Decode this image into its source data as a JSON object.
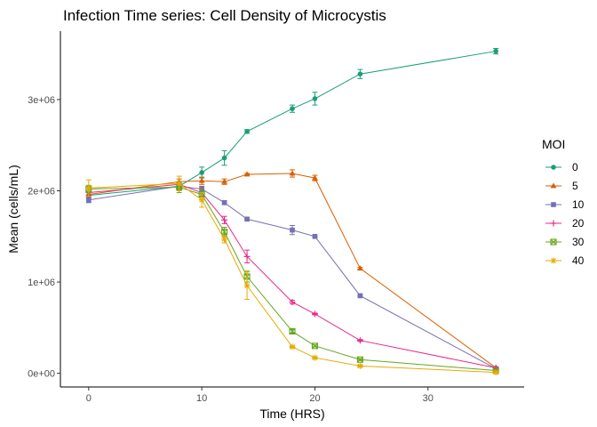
{
  "chart_data": {
    "type": "line",
    "title": "Infection Time series: Cell Density of Microcystis",
    "xlabel": "Time (HRS)",
    "ylabel": "Mean (cells/mL)",
    "xlim": [
      -2.5,
      38.5
    ],
    "ylim": [
      -150000.0,
      3750000.0
    ],
    "x_ticks": [
      0,
      10,
      20,
      30
    ],
    "x_tick_labels": [
      "0",
      "10",
      "20",
      "30"
    ],
    "y_ticks": [
      0,
      1000000,
      2000000,
      3000000
    ],
    "y_tick_labels": [
      "0e+00",
      "1e+06",
      "2e+06",
      "3e+06"
    ],
    "grid": false,
    "legend": {
      "title": "MOI",
      "position": "right"
    },
    "series": [
      {
        "name": "0",
        "color": "#1b9e77",
        "marker": "circle",
        "x": [
          0,
          8,
          10,
          12,
          14,
          18,
          20,
          24,
          36
        ],
        "y": [
          1950000,
          2050000,
          2200000,
          2360000,
          2650000,
          2900000,
          3010000,
          3280000,
          3530000
        ],
        "err": [
          40000,
          40000,
          60000,
          80000,
          20000,
          40000,
          70000,
          50000,
          30000
        ]
      },
      {
        "name": "5",
        "color": "#d95f02",
        "marker": "triangle",
        "x": [
          0,
          8,
          10,
          12,
          14,
          18,
          20,
          24,
          36
        ],
        "y": [
          1960000,
          2100000,
          2110000,
          2100000,
          2180000,
          2190000,
          2140000,
          1150000,
          60000
        ],
        "err": [
          30000,
          30000,
          40000,
          30000,
          10000,
          40000,
          30000,
          10000,
          10000
        ]
      },
      {
        "name": "10",
        "color": "#7570b3",
        "marker": "square",
        "x": [
          0,
          8,
          10,
          12,
          14,
          18,
          20,
          24,
          36
        ],
        "y": [
          1900000,
          2050000,
          2020000,
          1870000,
          1690000,
          1570000,
          1500000,
          850000,
          50000
        ],
        "err": [
          30000,
          30000,
          30000,
          20000,
          10000,
          50000,
          10000,
          10000,
          10000
        ]
      },
      {
        "name": "20",
        "color": "#e7298a",
        "marker": "plus",
        "x": [
          0,
          8,
          10,
          12,
          14,
          18,
          20,
          24,
          36
        ],
        "y": [
          1980000,
          2070000,
          1980000,
          1680000,
          1280000,
          780000,
          650000,
          360000,
          60000
        ],
        "err": [
          30000,
          30000,
          40000,
          40000,
          70000,
          20000,
          10000,
          10000,
          10000
        ]
      },
      {
        "name": "30",
        "color": "#66a61e",
        "marker": "square-x",
        "x": [
          0,
          8,
          10,
          12,
          14,
          18,
          20,
          24,
          36
        ],
        "y": [
          2020000,
          2040000,
          1960000,
          1550000,
          1060000,
          460000,
          300000,
          150000,
          30000
        ],
        "err": [
          40000,
          60000,
          60000,
          50000,
          60000,
          20000,
          10000,
          10000,
          10000
        ]
      },
      {
        "name": "40",
        "color": "#e6ab02",
        "marker": "asterisk",
        "x": [
          0,
          8,
          10,
          12,
          14,
          18,
          20,
          24,
          36
        ],
        "y": [
          2030000,
          2080000,
          1900000,
          1470000,
          960000,
          290000,
          170000,
          80000,
          10000
        ],
        "err": [
          90000,
          80000,
          80000,
          40000,
          150000,
          10000,
          10000,
          10000,
          10000
        ]
      }
    ]
  }
}
